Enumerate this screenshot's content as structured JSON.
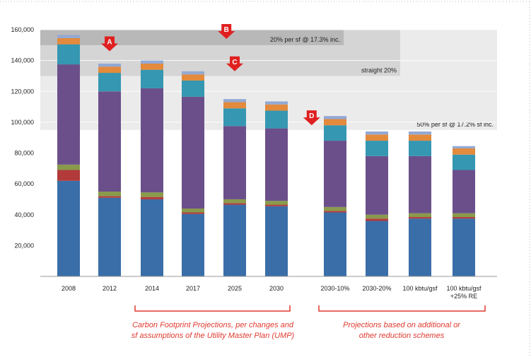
{
  "chart_data": {
    "type": "bar",
    "stacked": true,
    "categories": [
      "2008",
      "2012",
      "2014",
      "2017",
      "2025",
      "2030",
      "2030-10%",
      "2030-20%",
      "100 kbtu/gsf",
      "100 kbtu/gsf +25% RE"
    ],
    "category_lines": [
      [
        "2008"
      ],
      [
        "2012"
      ],
      [
        "2014"
      ],
      [
        "2017"
      ],
      [
        "2025"
      ],
      [
        "2030"
      ],
      [
        "2030-10%"
      ],
      [
        "2030-20%"
      ],
      [
        "100 kbtu/gsf"
      ],
      [
        "100 kbtu/gsf",
        "+25% RE"
      ]
    ],
    "series": [
      {
        "name": "blue",
        "color": "#3a6ea8",
        "values": [
          62000,
          51000,
          50000,
          40500,
          46500,
          45500,
          41500,
          36000,
          37500,
          37500
        ]
      },
      {
        "name": "red",
        "color": "#b23a3a",
        "values": [
          7000,
          1000,
          1500,
          1000,
          1000,
          1000,
          1000,
          1500,
          1000,
          1000
        ]
      },
      {
        "name": "olive",
        "color": "#8a9a4c",
        "values": [
          3500,
          3000,
          3000,
          2500,
          2500,
          2500,
          2500,
          2500,
          2500,
          2500
        ]
      },
      {
        "name": "purple",
        "color": "#6b4f8a",
        "values": [
          65000,
          65000,
          67500,
          72500,
          47500,
          47000,
          43000,
          38000,
          37000,
          28000
        ]
      },
      {
        "name": "teal",
        "color": "#3597b2",
        "values": [
          13000,
          12000,
          12000,
          10500,
          11500,
          11500,
          10000,
          10000,
          10000,
          10000
        ]
      },
      {
        "name": "orange",
        "color": "#e38a3c",
        "values": [
          4000,
          4000,
          4000,
          4000,
          4000,
          4000,
          4000,
          4000,
          4000,
          4000
        ]
      },
      {
        "name": "light-blue",
        "color": "#93a9d4",
        "values": [
          2000,
          2000,
          2000,
          2000,
          2000,
          2000,
          2000,
          2000,
          2000,
          1500
        ]
      }
    ],
    "ylim": [
      0,
      160000
    ],
    "yticks": [
      20000,
      40000,
      60000,
      80000,
      100000,
      120000,
      140000,
      160000
    ],
    "ytick_labels": [
      "20,000",
      "40,000",
      "60,000",
      "80,000",
      "100,000",
      "120,000",
      "140,000",
      "160,000"
    ],
    "bands": [
      {
        "label": "20% per sf @ 17.3% inc.",
        "from": 150000,
        "to": 160000,
        "color": "#b8b8b8"
      },
      {
        "label": "straight 20%",
        "from": 130000,
        "to": 160000,
        "color": "#d5d5d5"
      },
      {
        "label": "50% per sf @ 17.2% sf inc.",
        "from": 95000,
        "to": 160000,
        "color": "#ebebeb"
      }
    ],
    "markers": [
      {
        "label": "A",
        "category_index": 1,
        "value": 152000
      },
      {
        "label": "B",
        "category_index": 3.8,
        "value": 160000
      },
      {
        "label": "C",
        "category_index": 4.0,
        "value": 139000
      },
      {
        "label": "D",
        "category_index": 5.6,
        "value": 104000
      }
    ]
  },
  "captions": {
    "left": {
      "line1": "Carbon Footprint Projections, per changes and",
      "line2": "sf assumptions of the Utility Master Plan (UMP)"
    },
    "right": {
      "line1": "Projections based on additional or",
      "line2": "other reduction schemes"
    }
  }
}
